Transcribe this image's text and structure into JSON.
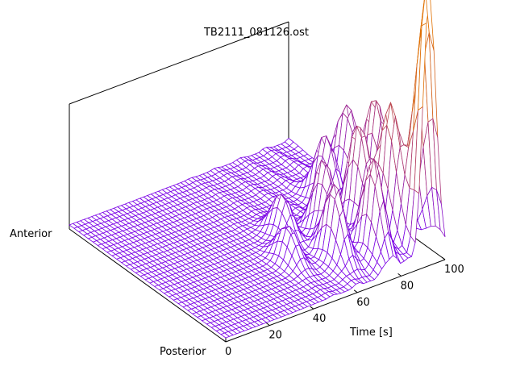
{
  "chart_data": {
    "type": "surface-3d",
    "title": "TB2111_081126.ost",
    "xlabel": "Time [s]",
    "xlim": [
      0,
      100
    ],
    "x_ticks": [
      0,
      20,
      40,
      60,
      80,
      100
    ],
    "y_labels": {
      "front": "Posterior",
      "back": "Anterior"
    },
    "grid": false,
    "colors": {
      "low": "#7a00e6",
      "high": "#e07000",
      "box": "#000000"
    },
    "baseline_level": 0.02,
    "series_description": "Mesh of ~34 slices (Anterior to Posterior) over time 0-100 s; near-flat until ~30 s, then rising peaks toward 100 s, largest toward Anterior side.",
    "peaks": [
      {
        "x": 92,
        "y_frac": 0.0,
        "height": 1.0
      },
      {
        "x": 95,
        "y_frac": 0.05,
        "height": 0.62
      },
      {
        "x": 88,
        "y_frac": 0.18,
        "height": 0.68
      },
      {
        "x": 82,
        "y_frac": 0.3,
        "height": 0.55
      },
      {
        "x": 76,
        "y_frac": 0.12,
        "height": 0.5
      },
      {
        "x": 70,
        "y_frac": 0.35,
        "height": 0.4
      },
      {
        "x": 64,
        "y_frac": 0.2,
        "height": 0.38
      },
      {
        "x": 97,
        "y_frac": 0.4,
        "height": 0.55
      },
      {
        "x": 98,
        "y_frac": 0.6,
        "height": 0.4
      },
      {
        "x": 85,
        "y_frac": 0.55,
        "height": 0.32
      },
      {
        "x": 58,
        "y_frac": 0.45,
        "height": 0.22
      },
      {
        "x": 50,
        "y_frac": 0.3,
        "height": 0.18
      }
    ]
  }
}
